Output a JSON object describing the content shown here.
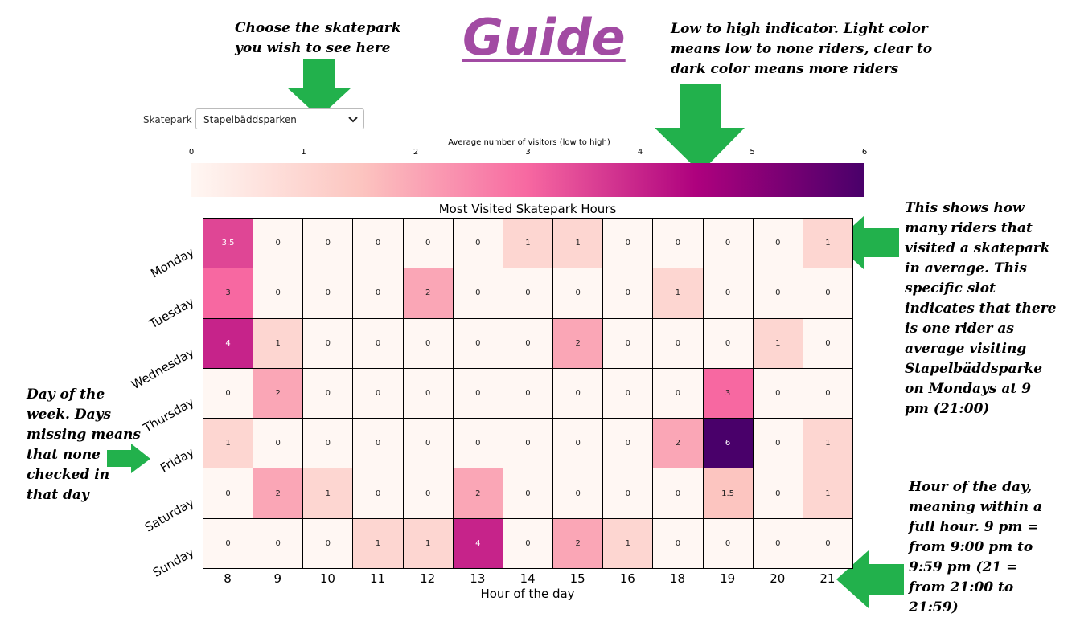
{
  "guide": {
    "title": "Guide"
  },
  "annotations": {
    "choose": "Choose the skatepark\nyou wish to see here",
    "indicator": "Low to high indicator. Light color\nmeans low to none riders, clear to\ndark color means more riders",
    "slot": "This shows how\nmany riders that\nvisited a skatepark\nin average. This\nspecific slot\nindicates that there\nis one rider as\naverage visiting\nStapelbäddsparke\non Mondays at 9\npm (21:00)",
    "day": "Day of the\nweek. Days\nmissing means\nthat none\nchecked in\nthat day",
    "hour": "Hour of the day,\nmeaning within a\nfull hour. 9 pm =\nfrom 9:00 pm to\n9:59 pm (21 =\nfrom 21:00  to\n21:59)"
  },
  "controls": {
    "skatepark_label": "Skatepark",
    "skatepark_value": "Stapelbäddsparken"
  },
  "colors": {
    "arrow": "#22b14c",
    "guide": "#a24ba3",
    "colormap": [
      "#fff7f3",
      "#fcc5c0",
      "#f768a1",
      "#ae017e",
      "#49006a"
    ]
  },
  "chart_data": {
    "type": "heatmap",
    "title": "Most Visited Skatepark Hours",
    "xlabel": "Hour of the day",
    "ylabel": "",
    "colorbar_label": "Average number of visitors (low to high)",
    "colorbar_range": [
      0,
      6
    ],
    "colorbar_ticks": [
      "0",
      "1",
      "2",
      "3",
      "4",
      "5",
      "6"
    ],
    "x": [
      "8",
      "9",
      "10",
      "11",
      "12",
      "13",
      "14",
      "15",
      "16",
      "18",
      "19",
      "20",
      "21"
    ],
    "y": [
      "Monday",
      "Tuesday",
      "Wednesday",
      "Thursday",
      "Friday",
      "Saturday",
      "Sunday"
    ],
    "values": [
      [
        3.5,
        0,
        0,
        0,
        0,
        0,
        1,
        1,
        0,
        0,
        0,
        0,
        1
      ],
      [
        3,
        0,
        0,
        0,
        2,
        0,
        0,
        0,
        0,
        1,
        0,
        0,
        0
      ],
      [
        4,
        1,
        0,
        0,
        0,
        0,
        0,
        2,
        0,
        0,
        0,
        1,
        0
      ],
      [
        0,
        2,
        0,
        0,
        0,
        0,
        0,
        0,
        0,
        0,
        3,
        0,
        0
      ],
      [
        1,
        0,
        0,
        0,
        0,
        0,
        0,
        0,
        0,
        2,
        6,
        0,
        1
      ],
      [
        0,
        2,
        1,
        0,
        0,
        2,
        0,
        0,
        0,
        0,
        1.5,
        0,
        1
      ],
      [
        0,
        0,
        0,
        1,
        1,
        4,
        0,
        2,
        1,
        0,
        0,
        0,
        0
      ]
    ],
    "value_labels": [
      [
        "3.5",
        "0",
        "0",
        "0",
        "0",
        "0",
        "1",
        "1",
        "0",
        "0",
        "0",
        "0",
        "1"
      ],
      [
        "3",
        "0",
        "0",
        "0",
        "2",
        "0",
        "0",
        "0",
        "0",
        "1",
        "0",
        "0",
        "0"
      ],
      [
        "4",
        "1",
        "0",
        "0",
        "0",
        "0",
        "0",
        "2",
        "0",
        "0",
        "0",
        "1",
        "0"
      ],
      [
        "0",
        "2",
        "0",
        "0",
        "0",
        "0",
        "0",
        "0",
        "0",
        "0",
        "3",
        "0",
        "0"
      ],
      [
        "1",
        "0",
        "0",
        "0",
        "0",
        "0",
        "0",
        "0",
        "0",
        "2",
        "6",
        "0",
        "1"
      ],
      [
        "0",
        "2",
        "1",
        "0",
        "0",
        "2",
        "0",
        "0",
        "0",
        "0",
        "1.5",
        "0",
        "1"
      ],
      [
        "0",
        "0",
        "0",
        "1",
        "1",
        "4",
        "0",
        "2",
        "1",
        "0",
        "0",
        "0",
        "0"
      ]
    ]
  }
}
